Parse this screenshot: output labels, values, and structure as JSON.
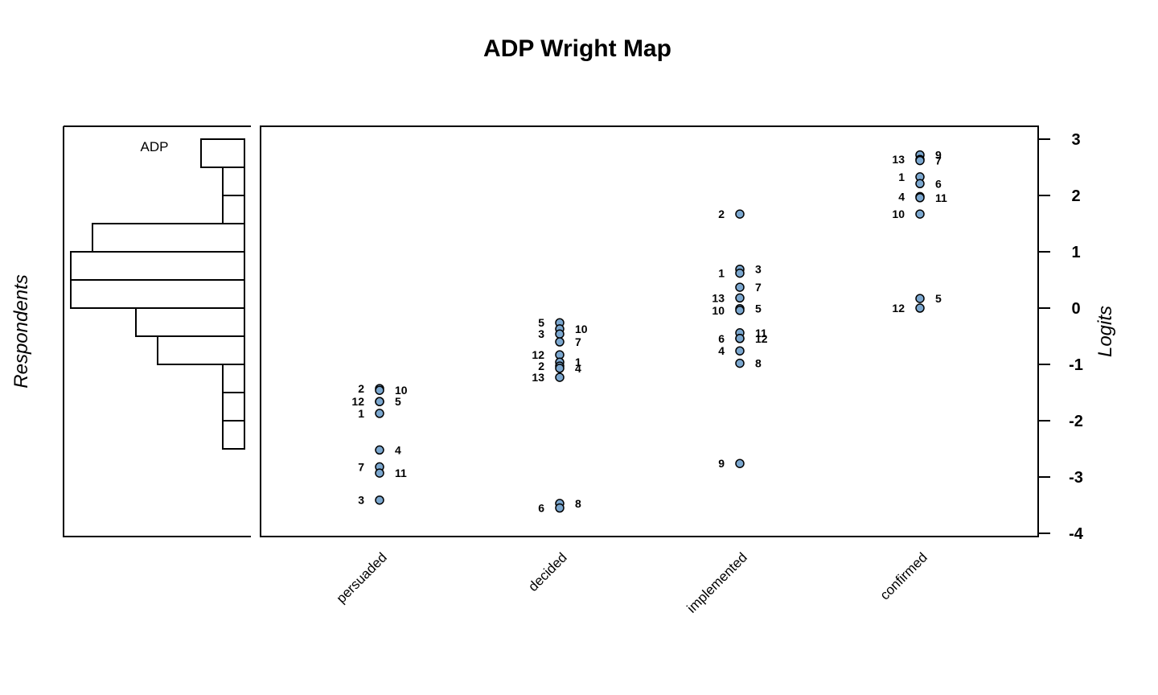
{
  "chart_data": {
    "type": "scatter",
    "title": "ADP Wright Map",
    "left_ylabel": "Respondents",
    "right_ylabel": "Logits",
    "histogram_title": "ADP",
    "ylim": [
      -4,
      3.1
    ],
    "yticks": [
      3,
      2,
      1,
      0,
      -1,
      -2,
      -3,
      -4
    ],
    "categories": [
      "persuaded",
      "decided",
      "implemented",
      "confirmed"
    ],
    "point_color": "#7ba7cf",
    "histogram": {
      "bins": [
        {
          "lo": 2.5,
          "hi": 3.0,
          "count": 2
        },
        {
          "lo": 2.0,
          "hi": 2.5,
          "count": 1
        },
        {
          "lo": 1.5,
          "hi": 2.0,
          "count": 1
        },
        {
          "lo": 1.0,
          "hi": 1.5,
          "count": 7
        },
        {
          "lo": 0.5,
          "hi": 1.0,
          "count": 8
        },
        {
          "lo": 0.0,
          "hi": 0.5,
          "count": 8
        },
        {
          "lo": -0.5,
          "hi": 0.0,
          "count": 5
        },
        {
          "lo": -1.0,
          "hi": -0.5,
          "count": 4
        },
        {
          "lo": -1.5,
          "hi": -1.0,
          "count": 1
        },
        {
          "lo": -2.0,
          "hi": -1.5,
          "count": 1
        },
        {
          "lo": -2.5,
          "hi": -2.0,
          "count": 1
        }
      ]
    },
    "items": [
      {
        "category": "persuaded",
        "points": [
          {
            "label": "2",
            "y": -1.43,
            "side": "left"
          },
          {
            "label": "10",
            "y": -1.46,
            "side": "right"
          },
          {
            "label": "12",
            "y": -1.66,
            "side": "left"
          },
          {
            "label": "5",
            "y": -1.66,
            "side": "right"
          },
          {
            "label": "1",
            "y": -1.87,
            "side": "left"
          },
          {
            "label": "4",
            "y": -2.52,
            "side": "right"
          },
          {
            "label": "7",
            "y": -2.82,
            "side": "left"
          },
          {
            "label": "11",
            "y": -2.93,
            "side": "right"
          },
          {
            "label": "3",
            "y": -3.41,
            "side": "left"
          }
        ]
      },
      {
        "category": "decided",
        "points": [
          {
            "label": "5",
            "y": -0.26,
            "side": "left"
          },
          {
            "label": "10",
            "y": -0.37,
            "side": "right"
          },
          {
            "label": "3",
            "y": -0.46,
            "side": "left"
          },
          {
            "label": "7",
            "y": -0.6,
            "side": "right"
          },
          {
            "label": "12",
            "y": -0.83,
            "side": "left"
          },
          {
            "label": "1",
            "y": -0.96,
            "side": "right"
          },
          {
            "label": "2",
            "y": -1.03,
            "side": "left"
          },
          {
            "label": "4",
            "y": -1.07,
            "side": "right"
          },
          {
            "label": "13",
            "y": -1.23,
            "side": "left"
          },
          {
            "label": "8",
            "y": -3.47,
            "side": "right"
          },
          {
            "label": "6",
            "y": -3.55,
            "side": "left"
          }
        ]
      },
      {
        "category": "implemented",
        "points": [
          {
            "label": "2",
            "y": 1.67,
            "side": "left"
          },
          {
            "label": "3",
            "y": 0.69,
            "side": "right"
          },
          {
            "label": "1",
            "y": 0.62,
            "side": "left"
          },
          {
            "label": "7",
            "y": 0.37,
            "side": "right"
          },
          {
            "label": "13",
            "y": 0.18,
            "side": "left"
          },
          {
            "label": "5",
            "y": -0.01,
            "side": "right"
          },
          {
            "label": "10",
            "y": -0.04,
            "side": "left"
          },
          {
            "label": "11",
            "y": -0.44,
            "side": "right"
          },
          {
            "label": "6",
            "y": -0.54,
            "side": "left"
          },
          {
            "label": "12",
            "y": -0.54,
            "side": "right"
          },
          {
            "label": "4",
            "y": -0.76,
            "side": "left"
          },
          {
            "label": "8",
            "y": -0.98,
            "side": "right"
          },
          {
            "label": "9",
            "y": -2.76,
            "side": "left"
          }
        ]
      },
      {
        "category": "confirmed",
        "points": [
          {
            "label": "9",
            "y": 2.72,
            "side": "right"
          },
          {
            "label": "13",
            "y": 2.64,
            "side": "left"
          },
          {
            "label": "7",
            "y": 2.62,
            "side": "right"
          },
          {
            "label": "1",
            "y": 2.33,
            "side": "left"
          },
          {
            "label": "6",
            "y": 2.21,
            "side": "right"
          },
          {
            "label": "4",
            "y": 1.98,
            "side": "left"
          },
          {
            "label": "11",
            "y": 1.96,
            "side": "right"
          },
          {
            "label": "10",
            "y": 1.67,
            "side": "left"
          },
          {
            "label": "5",
            "y": 0.17,
            "side": "right"
          },
          {
            "label": "12",
            "y": 0.0,
            "side": "left"
          }
        ]
      }
    ]
  }
}
